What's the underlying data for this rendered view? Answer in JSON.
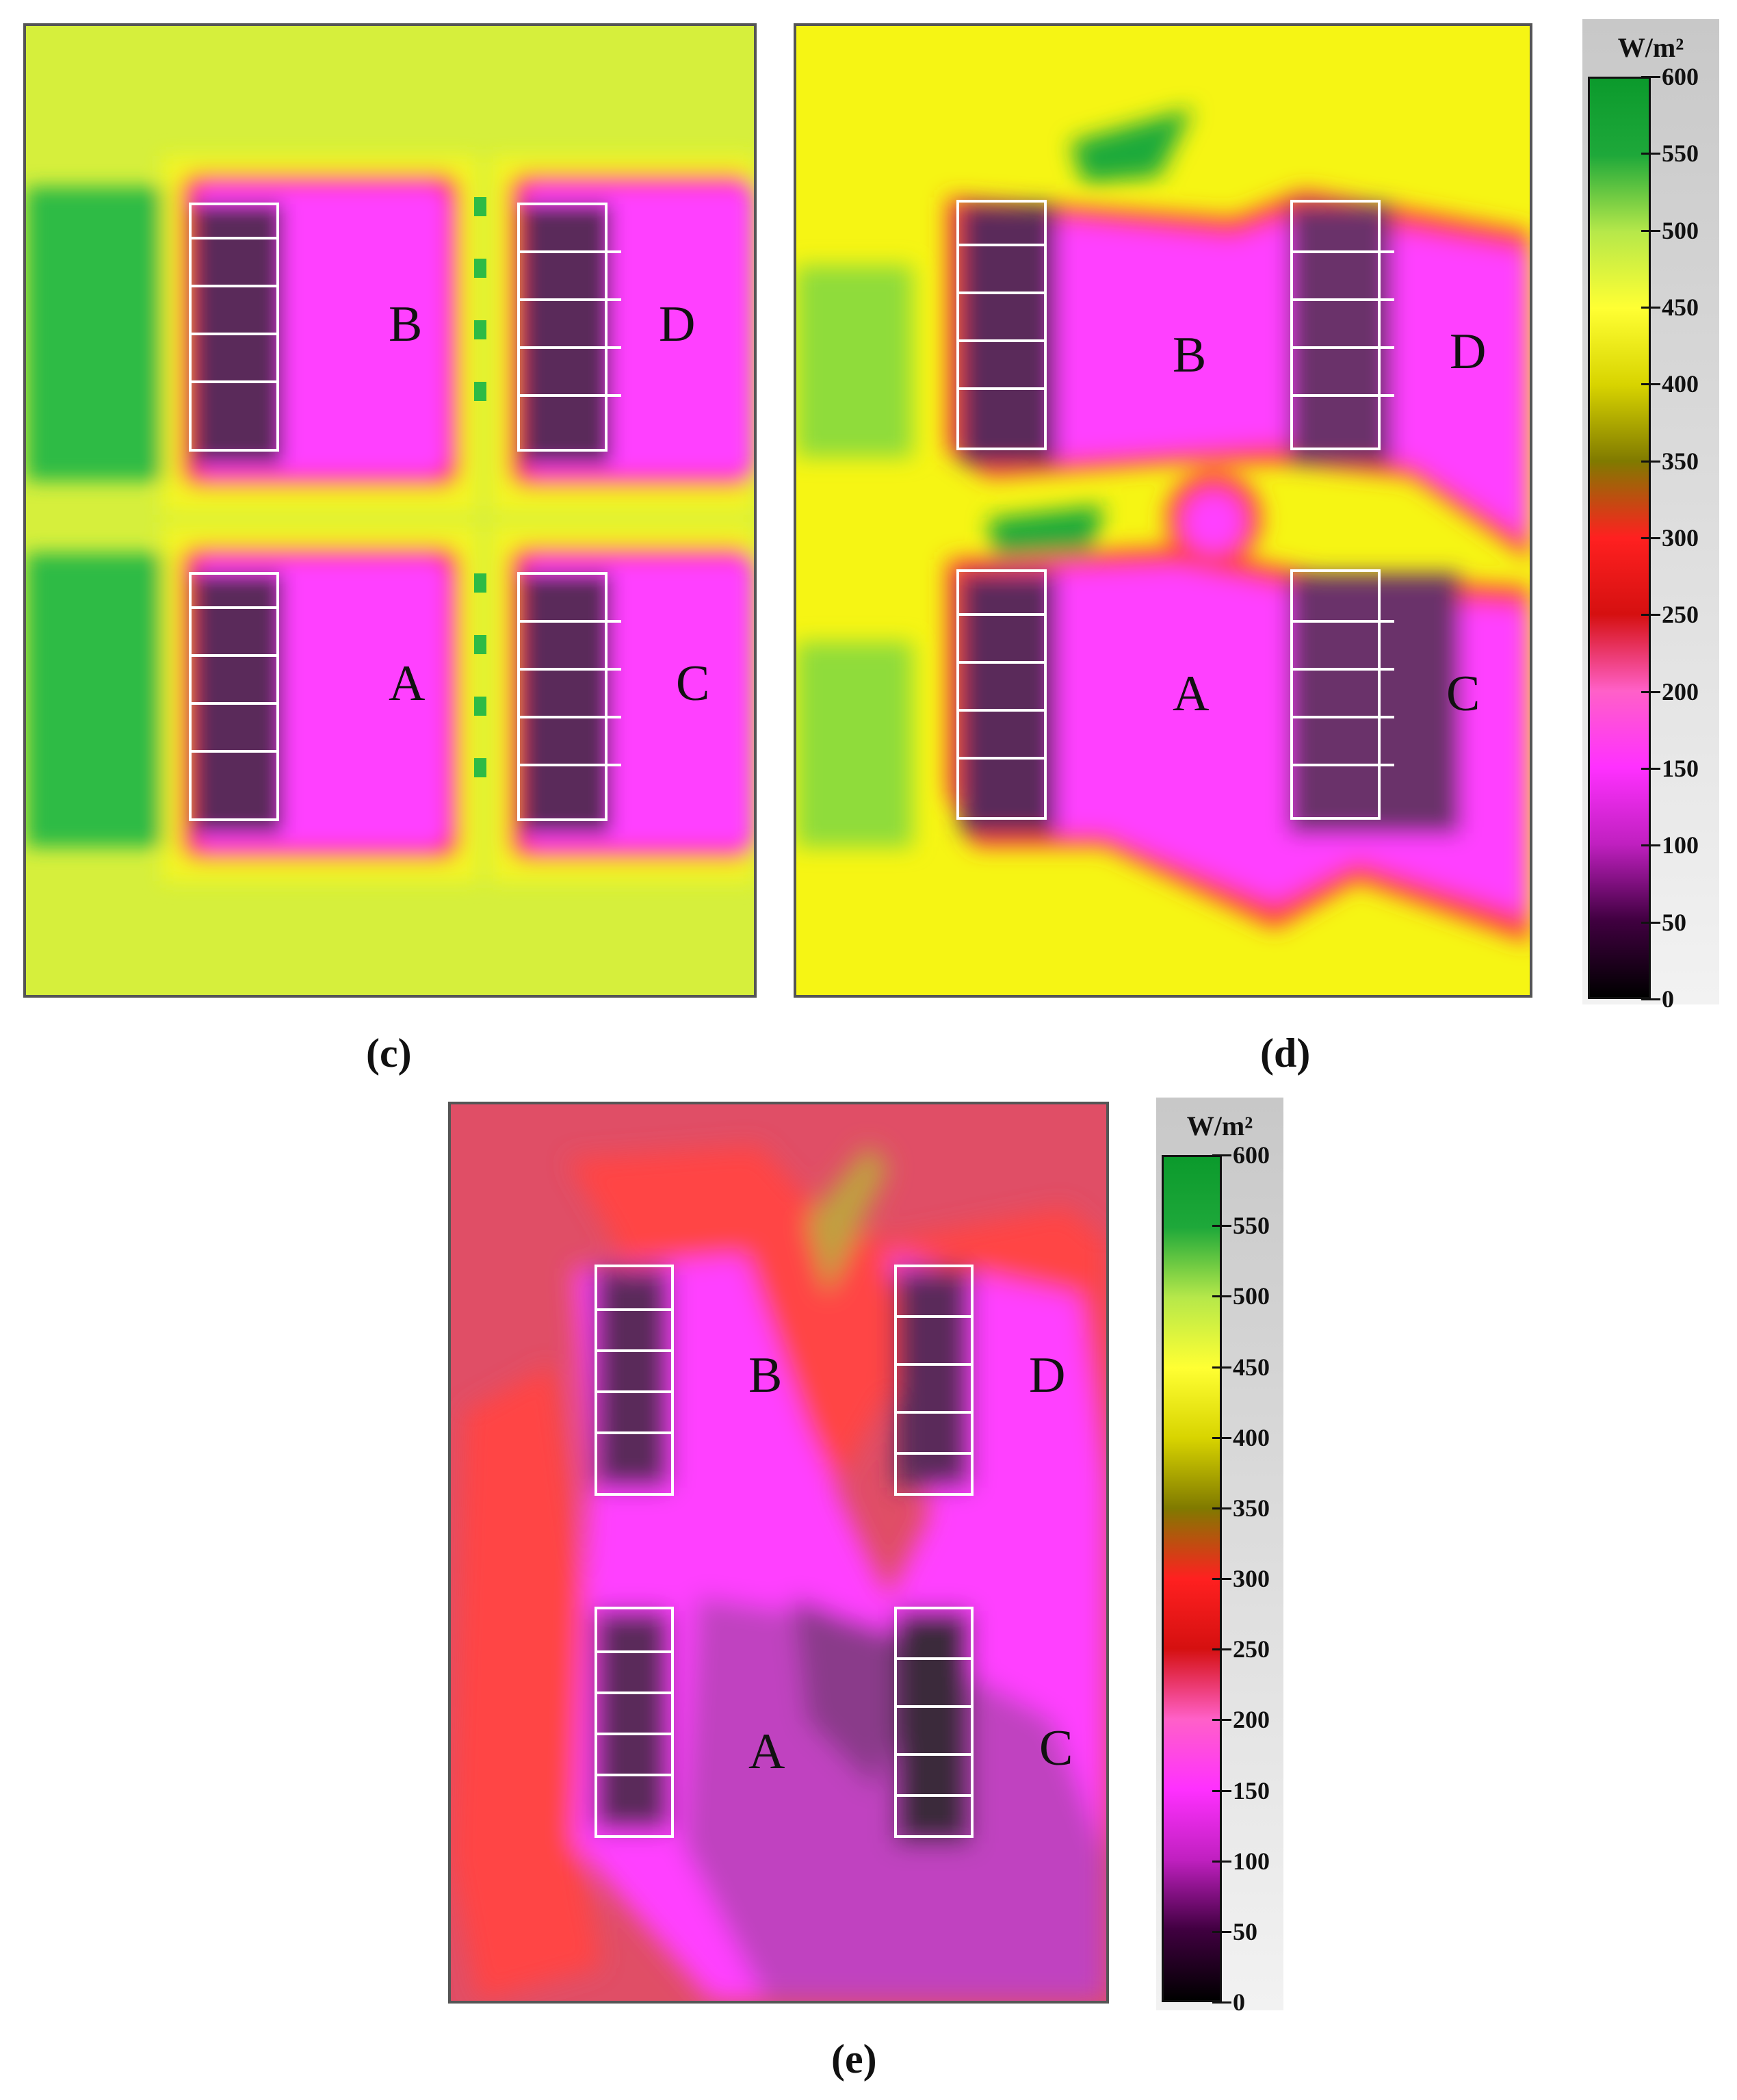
{
  "panels": [
    {
      "id": "c",
      "caption": "(c)",
      "labels": [
        "B",
        "D",
        "A",
        "C"
      ]
    },
    {
      "id": "d",
      "caption": "(d)",
      "labels": [
        "B",
        "D",
        "A",
        "C"
      ]
    },
    {
      "id": "e",
      "caption": "(e)",
      "labels": [
        "B",
        "D",
        "A",
        "C"
      ]
    }
  ],
  "colorbar": {
    "unit": "W/m²",
    "ticks": [
      "600",
      "550",
      "500",
      "450",
      "400",
      "350",
      "300",
      "250",
      "200",
      "150",
      "100",
      "50",
      "0"
    ],
    "range": [
      0,
      600
    ],
    "stops": [
      "#0b9a2c",
      "#1ea83a",
      "#b6e84a",
      "#ffff33",
      "#d8d400",
      "#807a00",
      "#ff2020",
      "#d51010",
      "#ff60c8",
      "#ff30ff",
      "#c020c0",
      "#400040",
      "#000000"
    ]
  },
  "colors": {
    "yellow_green": "#d9f23a",
    "yellow": "#f6f514",
    "green": "#3fcf44",
    "dark_green": "#1ea83a",
    "red": "#ff4d4d",
    "magenta": "#ff40ff",
    "purple": "#c042c0",
    "coral": "#e04e66",
    "dark": "#3a2a3a"
  }
}
